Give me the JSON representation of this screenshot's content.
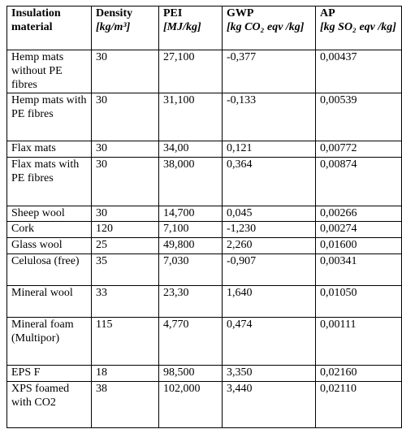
{
  "table": {
    "header": [
      {
        "name": "Insulation material",
        "unit": null
      },
      {
        "name": "Density",
        "unit": "[kg/m³]"
      },
      {
        "name": "PEI",
        "unit": "[MJ/kg]"
      },
      {
        "name": "GWP",
        "unit": "[kg CO₂ eqv /kg]"
      },
      {
        "name": "AP",
        "unit": "[kg SO₂ eqv /kg]"
      }
    ],
    "rows": [
      [
        "Hemp mats without PE fibres",
        "30",
        "27,100",
        "-0,377",
        "0,00437"
      ],
      [
        "Hemp mats with PE fibres",
        "30",
        "31,100",
        "-0,133",
        "0,00539"
      ],
      [
        "Flax mats",
        "30",
        "34,00",
        "0,121",
        "0,00772"
      ],
      [
        "Flax mats with PE fibres",
        "30",
        "38,000",
        "0,364",
        "0,00874"
      ],
      [
        "Sheep wool",
        "30",
        "14,700",
        "0,045",
        "0,00266"
      ],
      [
        "Cork",
        "120",
        "7,100",
        "-1,230",
        "0,00274"
      ],
      [
        "Glass wool",
        "25",
        "49,800",
        "2,260",
        "0,01600"
      ],
      [
        "Celulosa (free)",
        "35",
        "7,030",
        "-0,907",
        "0,00341"
      ],
      [
        "Mineral wool",
        "33",
        "23,30",
        "1,640",
        "0,01050"
      ],
      [
        "Mineral foam (Multipor)",
        "115",
        "4,770",
        "0,474",
        "0,00111"
      ],
      [
        "EPS F",
        "18",
        "98,500",
        "3,350",
        "0,02160"
      ],
      [
        "XPS foamed with CO2",
        "38",
        "102,000",
        "3,440",
        "0,02110"
      ]
    ]
  }
}
